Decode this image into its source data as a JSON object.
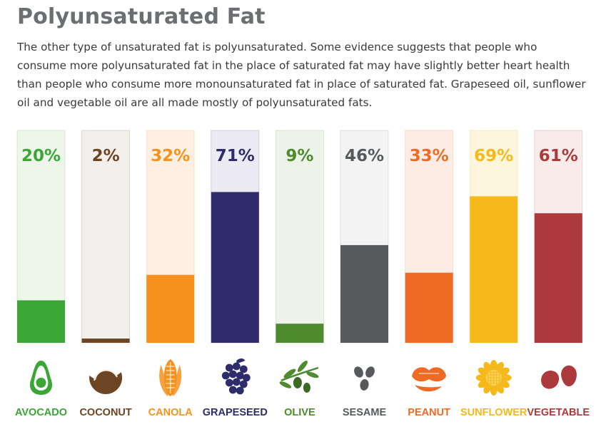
{
  "header": {
    "title": "Polyunsaturated Fat",
    "description": "The other type of unsaturated fat is polyunsaturated. Some evidence suggests that people who consume more polyunsaturated fat in the place of saturated fat may have slightly better heart health than people who consume more monounsaturated fat in place of saturated fat. Grapeseed oil, sunflower oil and vegetable oil are all made mostly of polyunsaturated fats."
  },
  "chart_data": {
    "type": "bar",
    "ylim": [
      0,
      100
    ],
    "grid": false,
    "categories": [
      "AVOCADO",
      "COCONUT",
      "CANOLA",
      "GRAPESEED",
      "OLIVE",
      "SESAME",
      "PEANUT",
      "SUNFLOWER",
      "VEGETABLE"
    ],
    "values": [
      20,
      2,
      32,
      71,
      9,
      46,
      33,
      69,
      61
    ],
    "data_labels": [
      "20%",
      "2%",
      "32%",
      "71%",
      "9%",
      "46%",
      "33%",
      "69%",
      "61%"
    ],
    "colors": [
      "#3aa635",
      "#6b4524",
      "#f5921e",
      "#2e2c6b",
      "#4e8a2e",
      "#58595b",
      "#ee6b23",
      "#f6b91b",
      "#ac3a3d"
    ],
    "track_colors": [
      "#eef6ea",
      "#f3efec",
      "#fdf0e3",
      "#eceaf3",
      "#eef3ea",
      "#f4f4f4",
      "#fcece3",
      "#fdf6dc",
      "#f8ebea"
    ],
    "icons": [
      "avocado-icon",
      "coconut-icon",
      "corn-icon",
      "grapes-icon",
      "olive-branch-icon",
      "sesame-seeds-icon",
      "peanut-icon",
      "sunflower-icon",
      "beans-icon"
    ]
  }
}
